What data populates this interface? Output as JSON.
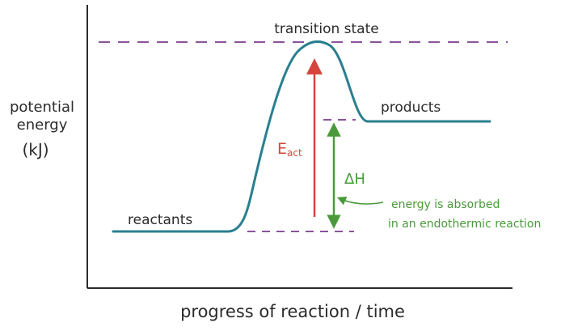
{
  "labels": {
    "y_axis": [
      "potential",
      "energy",
      "(kJ)"
    ],
    "x_axis": "progress of reaction / time",
    "transition_state": "transition state",
    "reactants": "reactants",
    "products": "products",
    "activation_energy": "E",
    "activation_energy_sub": "act",
    "enthalpy_change": "ΔH",
    "note": [
      "energy is absorbed",
      "in an endothermic reaction"
    ]
  },
  "colors": {
    "axis": "#2b2b2b",
    "curve": "#2a7f8f",
    "dashed": "#7a3b8f",
    "activation_arrow": "#d6453d",
    "enthalpy_arrow": "#4a9a3c",
    "text": "#2b2b2b"
  }
}
